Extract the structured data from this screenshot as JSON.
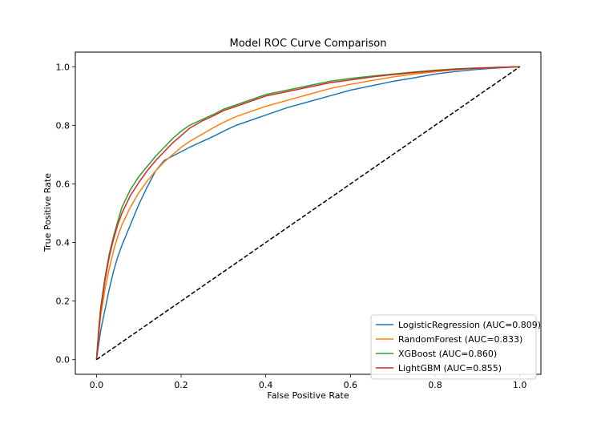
{
  "chart_data": {
    "type": "line",
    "title": "Model ROC Curve Comparison",
    "xlabel": "False Positive Rate",
    "ylabel": "True Positive Rate",
    "xlim": [
      -0.05,
      1.05
    ],
    "ylim": [
      -0.05,
      1.05
    ],
    "xticks": [
      0.0,
      0.2,
      0.4,
      0.6,
      0.8,
      1.0
    ],
    "xtick_labels": [
      "0.0",
      "0.2",
      "0.4",
      "0.6",
      "0.8",
      "1.0"
    ],
    "yticks": [
      0.0,
      0.2,
      0.4,
      0.6,
      0.8,
      1.0
    ],
    "ytick_labels": [
      "0.0",
      "0.2",
      "0.4",
      "0.6",
      "0.8",
      "1.0"
    ],
    "grid": false,
    "legend_position": "lower-right",
    "series": [
      {
        "name": "LogisticRegression",
        "label": "LogisticRegression (AUC=0.809)",
        "auc": 0.809,
        "color": "#1f77b4",
        "x": [
          0.0,
          0.005,
          0.01,
          0.02,
          0.03,
          0.04,
          0.05,
          0.06,
          0.08,
          0.1,
          0.12,
          0.14,
          0.16,
          0.18,
          0.2,
          0.22,
          0.25,
          0.28,
          0.3,
          0.33,
          0.36,
          0.4,
          0.45,
          0.5,
          0.55,
          0.6,
          0.65,
          0.7,
          0.75,
          0.8,
          0.85,
          0.9,
          0.95,
          1.0
        ],
        "y": [
          0.0,
          0.05,
          0.1,
          0.17,
          0.24,
          0.3,
          0.35,
          0.39,
          0.46,
          0.53,
          0.59,
          0.645,
          0.68,
          0.695,
          0.71,
          0.725,
          0.745,
          0.765,
          0.78,
          0.8,
          0.815,
          0.835,
          0.86,
          0.88,
          0.9,
          0.92,
          0.935,
          0.95,
          0.962,
          0.975,
          0.984,
          0.991,
          0.996,
          1.0
        ]
      },
      {
        "name": "RandomForest",
        "label": "RandomForest (AUC=0.833)",
        "auc": 0.833,
        "color": "#ff7f0e",
        "x": [
          0.0,
          0.005,
          0.01,
          0.02,
          0.03,
          0.04,
          0.05,
          0.06,
          0.08,
          0.1,
          0.12,
          0.14,
          0.16,
          0.18,
          0.2,
          0.22,
          0.25,
          0.28,
          0.3,
          0.33,
          0.36,
          0.4,
          0.45,
          0.5,
          0.55,
          0.6,
          0.65,
          0.7,
          0.75,
          0.8,
          0.85,
          0.9,
          0.95,
          1.0
        ],
        "y": [
          0.0,
          0.08,
          0.15,
          0.24,
          0.31,
          0.37,
          0.42,
          0.46,
          0.52,
          0.57,
          0.61,
          0.645,
          0.675,
          0.7,
          0.725,
          0.745,
          0.77,
          0.795,
          0.81,
          0.83,
          0.845,
          0.865,
          0.885,
          0.905,
          0.925,
          0.94,
          0.953,
          0.965,
          0.975,
          0.983,
          0.99,
          0.995,
          0.998,
          1.0
        ]
      },
      {
        "name": "XGBoost",
        "label": "XGBoost (AUC=0.860)",
        "auc": 0.86,
        "color": "#2ca02c",
        "x": [
          0.0,
          0.005,
          0.01,
          0.02,
          0.03,
          0.04,
          0.05,
          0.06,
          0.08,
          0.1,
          0.12,
          0.14,
          0.16,
          0.18,
          0.2,
          0.22,
          0.25,
          0.28,
          0.3,
          0.33,
          0.36,
          0.4,
          0.45,
          0.5,
          0.55,
          0.6,
          0.65,
          0.7,
          0.75,
          0.8,
          0.85,
          0.9,
          0.95,
          1.0
        ],
        "y": [
          0.0,
          0.1,
          0.18,
          0.28,
          0.36,
          0.42,
          0.47,
          0.52,
          0.58,
          0.625,
          0.66,
          0.695,
          0.725,
          0.755,
          0.78,
          0.8,
          0.82,
          0.84,
          0.855,
          0.87,
          0.885,
          0.905,
          0.92,
          0.935,
          0.95,
          0.96,
          0.968,
          0.975,
          0.982,
          0.988,
          0.993,
          0.996,
          0.998,
          1.0
        ]
      },
      {
        "name": "LightGBM",
        "label": "LightGBM (AUC=0.855)",
        "auc": 0.855,
        "color": "#d62728",
        "x": [
          0.0,
          0.005,
          0.01,
          0.02,
          0.03,
          0.04,
          0.05,
          0.06,
          0.08,
          0.1,
          0.12,
          0.14,
          0.16,
          0.18,
          0.2,
          0.22,
          0.25,
          0.28,
          0.3,
          0.33,
          0.36,
          0.4,
          0.45,
          0.5,
          0.55,
          0.6,
          0.65,
          0.7,
          0.75,
          0.8,
          0.85,
          0.9,
          0.95,
          1.0
        ],
        "y": [
          0.0,
          0.09,
          0.17,
          0.27,
          0.35,
          0.41,
          0.46,
          0.5,
          0.56,
          0.605,
          0.645,
          0.68,
          0.71,
          0.74,
          0.765,
          0.79,
          0.815,
          0.835,
          0.85,
          0.865,
          0.88,
          0.9,
          0.915,
          0.93,
          0.945,
          0.955,
          0.965,
          0.973,
          0.98,
          0.986,
          0.991,
          0.995,
          0.998,
          1.0
        ]
      }
    ],
    "reference_line": {
      "name": "chance",
      "x": [
        0.0,
        1.0
      ],
      "y": [
        0.0,
        1.0
      ],
      "color": "#000000",
      "style": "dashed"
    }
  }
}
